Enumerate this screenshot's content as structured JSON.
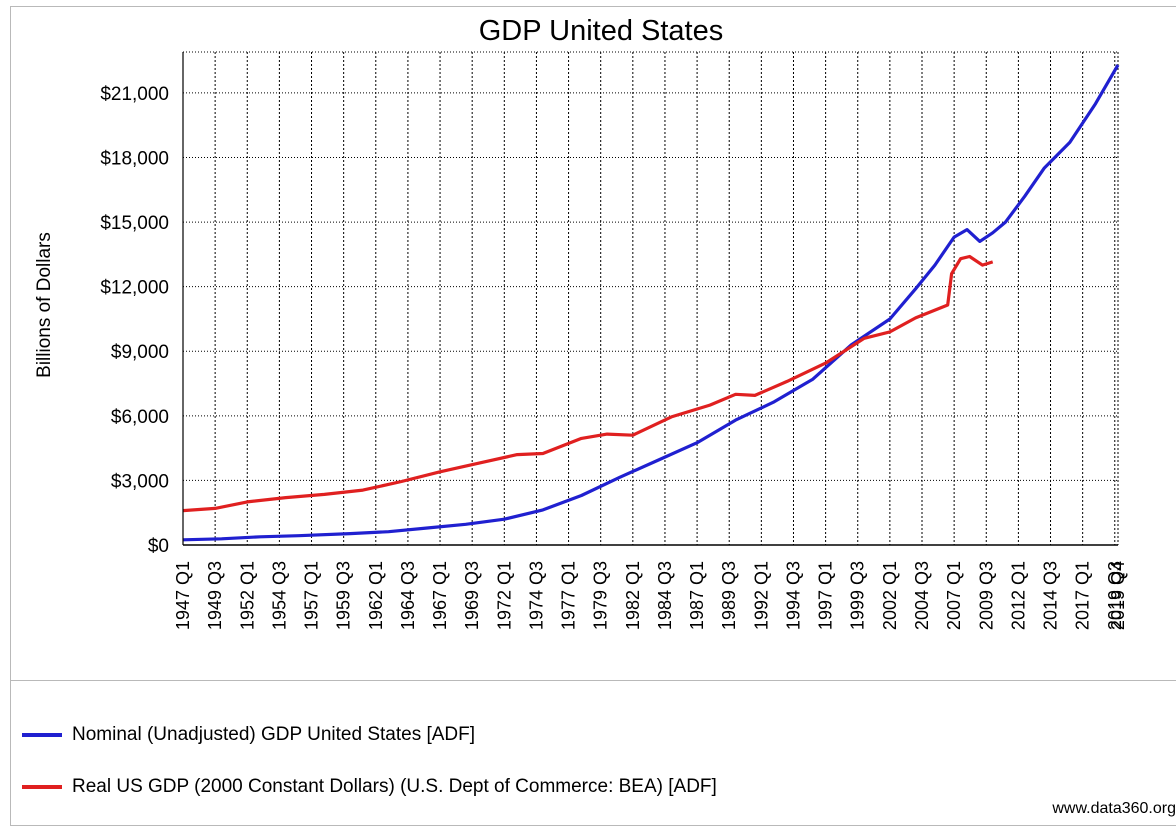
{
  "chart_data": {
    "type": "line",
    "title": "GDP United States",
    "xlabel": "",
    "ylabel": "Billions of Dollars",
    "ylim": [
      0,
      22900
    ],
    "yticks": [
      0,
      3000,
      6000,
      9000,
      12000,
      15000,
      18000,
      21000
    ],
    "ytick_labels": [
      "$0",
      "$3,000",
      "$6,000",
      "$9,000",
      "$12,000",
      "$15,000",
      "$18,000",
      "$21,000"
    ],
    "xlim": [
      1947.0,
      2019.75
    ],
    "xtick_labels": [
      "1947 Q1",
      "1949 Q3",
      "1952 Q1",
      "1954 Q3",
      "1957 Q1",
      "1959 Q3",
      "1962 Q1",
      "1964 Q3",
      "1967 Q1",
      "1969 Q3",
      "1972 Q1",
      "1974 Q3",
      "1977 Q1",
      "1979 Q3",
      "1982 Q1",
      "1984 Q3",
      "1987 Q1",
      "1989 Q3",
      "1992 Q1",
      "1994 Q3",
      "1997 Q1",
      "1999 Q3",
      "2002 Q1",
      "2004 Q3",
      "2007 Q1",
      "2009 Q3",
      "2012 Q1",
      "2014 Q3",
      "2017 Q1",
      "2019 Q3",
      "2019 Q4"
    ],
    "grid": true,
    "legend_position": "bottom",
    "series": [
      {
        "name": "Nominal (Unadjusted) GDP United States  [ADF]",
        "color": "#2020d0",
        "points": [
          [
            1947.0,
            240
          ],
          [
            1950.0,
            290
          ],
          [
            1953.0,
            380
          ],
          [
            1956.0,
            430
          ],
          [
            1960.0,
            530
          ],
          [
            1963.0,
            620
          ],
          [
            1966.0,
            790
          ],
          [
            1969.0,
            960
          ],
          [
            1972.0,
            1200
          ],
          [
            1975.0,
            1630
          ],
          [
            1978.0,
            2300
          ],
          [
            1981.0,
            3150
          ],
          [
            1984.0,
            3950
          ],
          [
            1987.0,
            4750
          ],
          [
            1990.0,
            5800
          ],
          [
            1993.0,
            6650
          ],
          [
            1996.0,
            7700
          ],
          [
            1999.0,
            9300
          ],
          [
            2002.0,
            10500
          ],
          [
            2004.0,
            11900
          ],
          [
            2005.5,
            13000
          ],
          [
            2007.0,
            14300
          ],
          [
            2008.0,
            14650
          ],
          [
            2009.0,
            14100
          ],
          [
            2010.0,
            14500
          ],
          [
            2011.0,
            15000
          ],
          [
            2012.5,
            16200
          ],
          [
            2014.0,
            17500
          ],
          [
            2016.0,
            18700
          ],
          [
            2018.0,
            20500
          ],
          [
            2019.75,
            22300
          ]
        ]
      },
      {
        "name": "Real US GDP (2000 Constant Dollars)  (U.S. Dept of Commerce: BEA) [ADF]",
        "color": "#e02020",
        "points": [
          [
            1947.0,
            1600
          ],
          [
            1949.5,
            1700
          ],
          [
            1952.0,
            2000
          ],
          [
            1955.0,
            2200
          ],
          [
            1958.0,
            2350
          ],
          [
            1961.0,
            2550
          ],
          [
            1964.0,
            2950
          ],
          [
            1967.0,
            3400
          ],
          [
            1970.0,
            3800
          ],
          [
            1973.0,
            4200
          ],
          [
            1975.0,
            4250
          ],
          [
            1978.0,
            4950
          ],
          [
            1980.0,
            5150
          ],
          [
            1982.0,
            5100
          ],
          [
            1985.0,
            5950
          ],
          [
            1988.0,
            6500
          ],
          [
            1990.0,
            7000
          ],
          [
            1991.5,
            6950
          ],
          [
            1994.0,
            7600
          ],
          [
            1997.0,
            8450
          ],
          [
            2000.0,
            9600
          ],
          [
            2002.0,
            9900
          ],
          [
            2004.0,
            10550
          ],
          [
            2006.5,
            11150
          ],
          [
            2006.8,
            12600
          ],
          [
            2007.5,
            13300
          ],
          [
            2008.2,
            13400
          ],
          [
            2009.2,
            13000
          ],
          [
            2010.0,
            13150
          ]
        ]
      }
    ]
  },
  "credit": "www.data360.org"
}
